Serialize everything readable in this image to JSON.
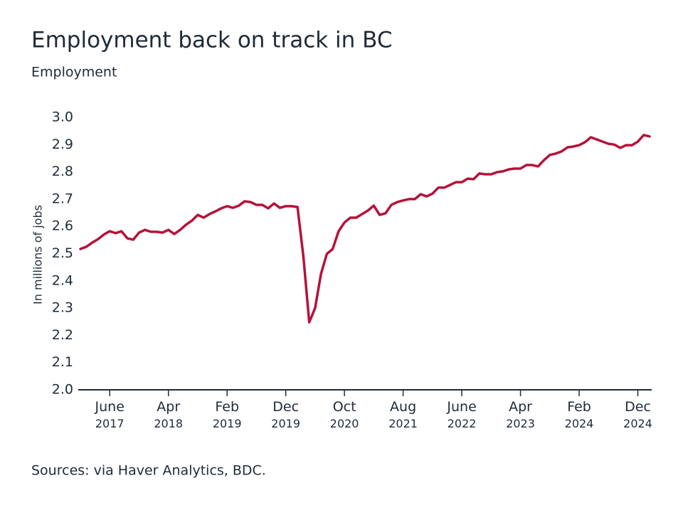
{
  "chart_data": {
    "type": "line",
    "title": "Employment back on track in BC",
    "subtitle": "Employment",
    "y_label": "In millions of jobs",
    "source": "Sources: via Haver Analytics, BDC.",
    "x": [
      "2017-01",
      "2017-02",
      "2017-03",
      "2017-04",
      "2017-05",
      "2017-06",
      "2017-07",
      "2017-08",
      "2017-09",
      "2017-10",
      "2017-11",
      "2017-12",
      "2018-01",
      "2018-02",
      "2018-03",
      "2018-04",
      "2018-05",
      "2018-06",
      "2018-07",
      "2018-08",
      "2018-09",
      "2018-10",
      "2018-11",
      "2018-12",
      "2019-01",
      "2019-02",
      "2019-03",
      "2019-04",
      "2019-05",
      "2019-06",
      "2019-07",
      "2019-08",
      "2019-09",
      "2019-10",
      "2019-11",
      "2019-12",
      "2020-01",
      "2020-02",
      "2020-03",
      "2020-04",
      "2020-05",
      "2020-06",
      "2020-07",
      "2020-08",
      "2020-09",
      "2020-10",
      "2020-11",
      "2020-12",
      "2021-01",
      "2021-02",
      "2021-03",
      "2021-04",
      "2021-05",
      "2021-06",
      "2021-07",
      "2021-08",
      "2021-09",
      "2021-10",
      "2021-11",
      "2021-12",
      "2022-01",
      "2022-02",
      "2022-03",
      "2022-04",
      "2022-05",
      "2022-06",
      "2022-07",
      "2022-08",
      "2022-09",
      "2022-10",
      "2022-11",
      "2022-12",
      "2023-01",
      "2023-02",
      "2023-03",
      "2023-04",
      "2023-05",
      "2023-06",
      "2023-07",
      "2023-08",
      "2023-09",
      "2023-10",
      "2023-11",
      "2023-12",
      "2024-01",
      "2024-02",
      "2024-03",
      "2024-04",
      "2024-05",
      "2024-06",
      "2024-07",
      "2024-08",
      "2024-09",
      "2024-10",
      "2024-11",
      "2024-12",
      "2025-01",
      "2025-02"
    ],
    "series": [
      {
        "name": "Employment",
        "color": "#b5123a",
        "values": [
          2.517,
          2.525,
          2.54,
          2.553,
          2.57,
          2.582,
          2.575,
          2.582,
          2.556,
          2.551,
          2.577,
          2.587,
          2.58,
          2.58,
          2.577,
          2.587,
          2.572,
          2.587,
          2.606,
          2.621,
          2.642,
          2.632,
          2.645,
          2.655,
          2.666,
          2.674,
          2.668,
          2.676,
          2.692,
          2.689,
          2.679,
          2.679,
          2.666,
          2.684,
          2.668,
          2.674,
          2.674,
          2.671,
          2.49,
          2.248,
          2.3,
          2.425,
          2.499,
          2.517,
          2.582,
          2.614,
          2.632,
          2.632,
          2.645,
          2.658,
          2.676,
          2.642,
          2.648,
          2.679,
          2.689,
          2.695,
          2.7,
          2.7,
          2.718,
          2.71,
          2.72,
          2.742,
          2.742,
          2.752,
          2.762,
          2.762,
          2.775,
          2.773,
          2.794,
          2.791,
          2.791,
          2.799,
          2.802,
          2.809,
          2.812,
          2.812,
          2.825,
          2.825,
          2.82,
          2.843,
          2.862,
          2.867,
          2.875,
          2.89,
          2.893,
          2.898,
          2.909,
          2.927,
          2.919,
          2.911,
          2.903,
          2.9,
          2.888,
          2.898,
          2.898,
          2.911,
          2.935,
          2.93
        ]
      }
    ],
    "xticks": [
      {
        "value": "2017-06",
        "label": [
          "June",
          "2017"
        ]
      },
      {
        "value": "2018-04",
        "label": [
          "Apr",
          "2018"
        ]
      },
      {
        "value": "2019-02",
        "label": [
          "Feb",
          "2019"
        ]
      },
      {
        "value": "2019-12",
        "label": [
          "Dec",
          "2019"
        ]
      },
      {
        "value": "2020-10",
        "label": [
          "Oct",
          "2020"
        ]
      },
      {
        "value": "2021-08",
        "label": [
          "Aug",
          "2021"
        ]
      },
      {
        "value": "2022-06",
        "label": [
          "June",
          "2022"
        ]
      },
      {
        "value": "2023-04",
        "label": [
          "Apr",
          "2023"
        ]
      },
      {
        "value": "2024-02",
        "label": [
          "Feb",
          "2024"
        ]
      },
      {
        "value": "2024-12",
        "label": [
          "Dec",
          "2024"
        ]
      }
    ],
    "ylim": [
      2.0,
      3.0
    ],
    "yticks": [
      {
        "value": 2,
        "label": "2.0"
      },
      2.1,
      2.2,
      2.3,
      2.4,
      2.5,
      2.6,
      2.7,
      2.8,
      2.9,
      {
        "value": 3,
        "label": "3.0"
      }
    ],
    "grid": false
  }
}
